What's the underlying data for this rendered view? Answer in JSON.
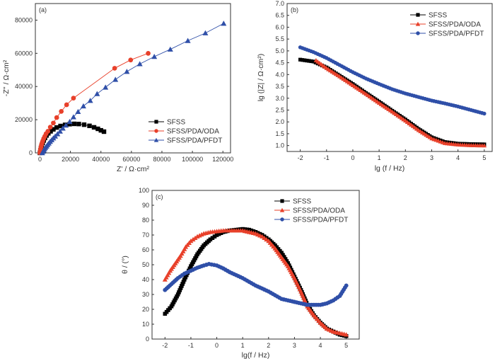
{
  "chart_data": [
    {
      "type": "scatter",
      "panel": "(a)",
      "xlabel": "Z' / Ω·cm²",
      "ylabel": "-Z'' / Ω·cm²",
      "xlim": [
        -3000,
        125000
      ],
      "ylim": [
        0,
        90000
      ],
      "xticks": [
        0,
        20000,
        40000,
        60000,
        80000,
        100000,
        120000
      ],
      "xtick_labels": [
        "0",
        "20000",
        "40000",
        "60000",
        "80000",
        "100000",
        "120000"
      ],
      "yticks": [
        0,
        20000,
        40000,
        60000,
        80000
      ],
      "ytick_labels": [
        "0",
        "20000",
        "40000",
        "60000",
        "80000"
      ],
      "legend": "bottom-right",
      "series": [
        {
          "name": "SFSS",
          "color": "#000000",
          "marker": "square",
          "x": [
            0,
            300,
            700,
            1200,
            1800,
            2500,
            3300,
            4300,
            5500,
            7000,
            8800,
            11000,
            13500,
            16500,
            19500,
            22500,
            25500,
            29000,
            32500,
            35500,
            38000,
            40000,
            42000
          ],
          "y": [
            0,
            1500,
            3000,
            4500,
            6000,
            7500,
            9000,
            10500,
            11800,
            13000,
            14200,
            15300,
            16200,
            16900,
            17300,
            17500,
            17400,
            17000,
            16300,
            15400,
            14500,
            13600,
            12800
          ]
        },
        {
          "name": "SFSS/PDA/ODA",
          "color": "#e8402a",
          "marker": "circle",
          "x": [
            0,
            200,
            400,
            700,
            1000,
            1400,
            1900,
            2500,
            3200,
            4000,
            5200,
            6800,
            8800,
            11000,
            14000,
            17500,
            22000,
            49000,
            59500,
            71000
          ],
          "y": [
            0,
            1200,
            2400,
            3600,
            4800,
            6000,
            7300,
            8700,
            10000,
            11500,
            13000,
            15500,
            18000,
            21300,
            25000,
            29000,
            33000,
            51000,
            56000,
            60000
          ]
        },
        {
          "name": "SFSS/PDA/PFDT",
          "color": "#2f4fa8",
          "marker": "triangle",
          "x": [
            1500,
            2000,
            2500,
            3000,
            3600,
            4300,
            5000,
            5800,
            6700,
            7700,
            8800,
            10000,
            11500,
            13200,
            15000,
            17000,
            19500,
            22000,
            25000,
            28500,
            33000,
            37500,
            43000,
            49500,
            57000,
            65500,
            75000,
            85500,
            97000,
            108500,
            120500
          ],
          "y": [
            0,
            800,
            1600,
            2400,
            3200,
            4000,
            4900,
            5800,
            6800,
            7800,
            8900,
            10000,
            11400,
            13000,
            14800,
            16600,
            18800,
            21600,
            24800,
            28200,
            31500,
            35600,
            39500,
            44200,
            49000,
            53600,
            58000,
            62400,
            67600,
            72200,
            78000
          ]
        }
      ]
    },
    {
      "type": "line",
      "panel": "(b)",
      "xlabel": "lg (f / Hz)",
      "ylabel": "lg (|Z| / Ω·cm²)",
      "xlim": [
        -2.5,
        5.3
      ],
      "ylim": [
        0.75,
        7.0
      ],
      "xticks": [
        -2,
        -1,
        0,
        1,
        2,
        3,
        4,
        5
      ],
      "xtick_labels": [
        "-2",
        "-1",
        "0",
        "1",
        "2",
        "3",
        "4",
        "5"
      ],
      "yticks": [
        1.0,
        1.5,
        2.0,
        2.5,
        3.0,
        3.5,
        4.0,
        4.5,
        5.0,
        5.5,
        6.0,
        6.5,
        7.0
      ],
      "ytick_labels": [
        "1.0",
        "1.5",
        "2.0",
        "2.5",
        "3.0",
        "3.5",
        "4.0",
        "4.5",
        "5.0",
        "5.5",
        "6.0",
        "6.5",
        "7.0"
      ],
      "legend": "top-right",
      "series": [
        {
          "name": "SFSS",
          "color": "#000000",
          "marker": "square",
          "x": [
            -2,
            -1.5,
            -1,
            -0.5,
            0,
            0.5,
            1,
            1.5,
            2,
            2.5,
            3,
            3.5,
            4,
            4.5,
            5
          ],
          "y": [
            4.63,
            4.55,
            4.3,
            3.95,
            3.6,
            3.22,
            2.85,
            2.47,
            2.1,
            1.7,
            1.35,
            1.15,
            1.08,
            1.06,
            1.05
          ]
        },
        {
          "name": "SFSS/PDA/ODA",
          "color": "#e8402a",
          "marker": "triangle",
          "x": [
            -1.4,
            -1,
            -0.5,
            0,
            0.5,
            1,
            1.5,
            2,
            2.5,
            3,
            3.5,
            4,
            4.5,
            5
          ],
          "y": [
            4.6,
            4.27,
            3.92,
            3.55,
            3.18,
            2.8,
            2.43,
            2.05,
            1.65,
            1.3,
            1.1,
            1.04,
            1.01,
            1.0
          ]
        },
        {
          "name": "SFSS/PDA/PFDT",
          "color": "#2f4fa8",
          "marker": "circle",
          "x": [
            -2,
            -1.5,
            -1,
            -0.5,
            0,
            0.5,
            1,
            1.5,
            2,
            2.5,
            3,
            3.5,
            4,
            4.5,
            5
          ],
          "y": [
            5.15,
            4.95,
            4.7,
            4.4,
            4.1,
            3.83,
            3.6,
            3.38,
            3.2,
            3.05,
            2.9,
            2.78,
            2.65,
            2.5,
            2.35
          ]
        }
      ]
    },
    {
      "type": "line",
      "panel": "(c)",
      "xlabel": "lg(f / Hz)",
      "ylabel": "θ / (°)",
      "xlim": [
        -2.5,
        5.5
      ],
      "ylim": [
        0,
        100
      ],
      "xticks": [
        -2,
        -1,
        0,
        1,
        2,
        3,
        4,
        5
      ],
      "xtick_labels": [
        "-2",
        "-1",
        "0",
        "1",
        "2",
        "3",
        "4",
        "5"
      ],
      "yticks": [
        0,
        10,
        20,
        30,
        40,
        50,
        60,
        70,
        80,
        90,
        100
      ],
      "ytick_labels": [
        "0",
        "10",
        "20",
        "30",
        "40",
        "50",
        "60",
        "70",
        "80",
        "90",
        "100"
      ],
      "legend": "top-right",
      "series": [
        {
          "name": "SFSS",
          "color": "#000000",
          "marker": "square",
          "x": [
            -2,
            -1.75,
            -1.5,
            -1.25,
            -1,
            -0.75,
            -0.5,
            -0.25,
            0,
            0.25,
            0.5,
            0.75,
            1,
            1.25,
            1.5,
            1.75,
            2,
            2.25,
            2.5,
            2.75,
            3,
            3.25,
            3.5,
            3.75,
            4,
            4.25,
            4.5,
            4.75,
            5
          ],
          "y": [
            17,
            22,
            30,
            40,
            49,
            57,
            63,
            67,
            70,
            72,
            73,
            73.5,
            74,
            73.5,
            72,
            70,
            67,
            63,
            58,
            51,
            42,
            33,
            23,
            16,
            11,
            7,
            5,
            3,
            2
          ]
        },
        {
          "name": "SFSS/PDA/ODA",
          "color": "#e8402a",
          "marker": "triangle",
          "x": [
            -2,
            -1.8,
            -1.4,
            -1.2,
            -1,
            -0.75,
            -0.5,
            -0.25,
            0,
            0.25,
            0.5,
            0.75,
            1,
            1.25,
            1.5,
            1.75,
            2,
            2.25,
            2.5,
            2.75,
            3,
            3.25,
            3.5,
            3.75,
            4,
            4.25,
            4.5,
            4.75,
            5
          ],
          "y": [
            40,
            46,
            56,
            62,
            66,
            69,
            71,
            72,
            72.5,
            73,
            73,
            73,
            73,
            72,
            71,
            69,
            66,
            61,
            55,
            49,
            41,
            32,
            22,
            16,
            11,
            7,
            5,
            4,
            3
          ]
        },
        {
          "name": "SFSS/PDA/PFDT",
          "color": "#2f4fa8",
          "marker": "circle",
          "x": [
            -2,
            -1.75,
            -1.5,
            -1.25,
            -1,
            -0.75,
            -0.5,
            -0.3,
            0,
            0.25,
            0.5,
            0.75,
            1,
            1.25,
            1.5,
            1.75,
            2,
            2.25,
            2.5,
            2.75,
            3,
            3.25,
            3.5,
            3.75,
            4,
            4.25,
            4.5,
            4.75,
            5
          ],
          "y": [
            33,
            37,
            41,
            44,
            46,
            48,
            49.5,
            50.5,
            49.5,
            47.5,
            45,
            43,
            41,
            38.5,
            36,
            34,
            32,
            29.5,
            27,
            26,
            25,
            24,
            23,
            23,
            23,
            24,
            26,
            29,
            36
          ]
        }
      ]
    }
  ]
}
